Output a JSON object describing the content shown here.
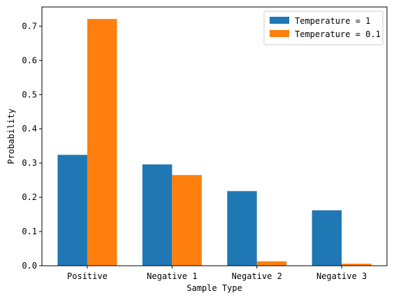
{
  "chart_data": {
    "type": "bar",
    "title": "",
    "xlabel": "Sample Type",
    "ylabel": "Probability",
    "categories": [
      "Positive",
      "Negative 1",
      "Negative 2",
      "Negative 3"
    ],
    "series": [
      {
        "name": "Temperature = 1",
        "color": "#1f77b4",
        "values": [
          0.324,
          0.296,
          0.218,
          0.162
        ]
      },
      {
        "name": "Temperature = 0.1",
        "color": "#ff7f0e",
        "values": [
          0.721,
          0.265,
          0.013,
          0.006
        ]
      }
    ],
    "ylim": [
      0,
      0.756
    ],
    "yticks": [
      0.0,
      0.1,
      0.2,
      0.3,
      0.4,
      0.5,
      0.6,
      0.7
    ],
    "ytick_labels": [
      "0.0",
      "0.1",
      "0.2",
      "0.3",
      "0.4",
      "0.5",
      "0.6",
      "0.7"
    ],
    "grid": false,
    "legend_position": "top-right"
  }
}
